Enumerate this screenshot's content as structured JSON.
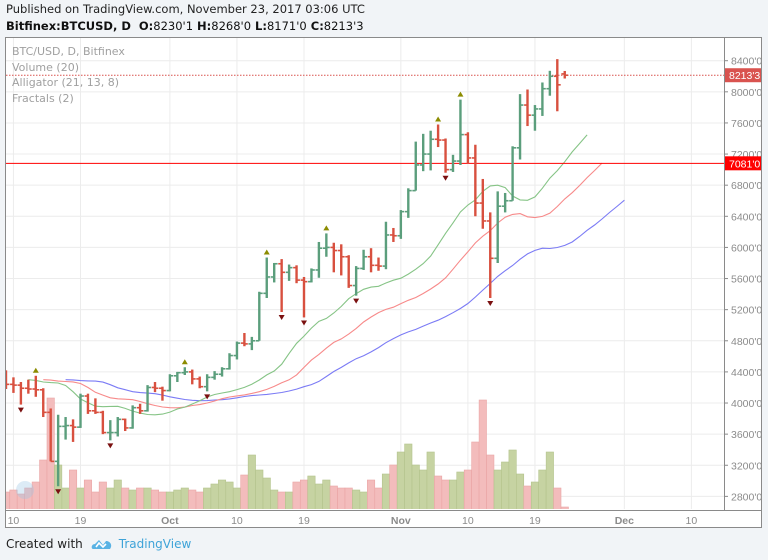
{
  "header": {
    "published": "Published on TradingView.com, November 23, 2017 03:06 UTC",
    "symbol": "Bitfinex:BTCUSD, D",
    "ohlc": {
      "o_label": "O:",
      "o": "8230'1",
      "h_label": "H:",
      "h": "8268'0",
      "l_label": "L:",
      "l": "8171'0",
      "c_label": "C:",
      "c": "8213'3"
    }
  },
  "legend": {
    "series": "BTC/USD, D, Bitfinex",
    "volume": "Volume (20)",
    "alligator": "Alligator (21, 13, 8)",
    "fractals": "Fractals (2)"
  },
  "footer": {
    "created_with": "Created with",
    "brand": "TradingView"
  },
  "colors": {
    "up": "#5b9e7c",
    "down": "#d8503f",
    "vol_up": "#c6d3a2",
    "vol_down": "#f3bcbc",
    "jaw": "#7b7bf5",
    "teeth": "#f78a8a",
    "lips": "#86c486",
    "fractal_up": "#8c8c00",
    "fractal_down": "#7a1010",
    "last_price": "#d9534f",
    "hline": "#ff0000"
  },
  "chart_data": {
    "type": "ohlc",
    "symbol": "BTC/USD",
    "interval": "D",
    "start_date": "2017-09-09",
    "ylim": [
      2700,
      8550
    ],
    "y_ticks": [
      "8400'0",
      "8000'0",
      "7600'0",
      "7200'0",
      "6800'0",
      "6400'0",
      "6000'0",
      "5600'0",
      "5200'0",
      "4800'0",
      "4400'0",
      "4000'0",
      "3600'0",
      "3200'0",
      "2800'0"
    ],
    "y_tick_values": [
      8400,
      8000,
      7600,
      7200,
      6800,
      6400,
      6000,
      5600,
      5200,
      4800,
      4400,
      4000,
      3600,
      3200,
      2800
    ],
    "x_ticks": [
      {
        "label": "10",
        "day": 1,
        "bold": false
      },
      {
        "label": "19",
        "day": 10,
        "bold": false
      },
      {
        "label": "Oct",
        "day": 22,
        "bold": true
      },
      {
        "label": "10",
        "day": 31,
        "bold": false
      },
      {
        "label": "19",
        "day": 40,
        "bold": false
      },
      {
        "label": "Nov",
        "day": 53,
        "bold": true
      },
      {
        "label": "10",
        "day": 62,
        "bold": false
      },
      {
        "label": "19",
        "day": 71,
        "bold": false
      },
      {
        "label": "Dec",
        "day": 83,
        "bold": true
      },
      {
        "label": "10",
        "day": 92,
        "bold": false
      }
    ],
    "last_price": {
      "value": 8213.3,
      "label": "8213'3"
    },
    "horizontal_line": {
      "value": 7081.0,
      "label": "7081'0"
    },
    "alligator": {
      "jaw": {
        "length": 21,
        "offset": 8
      },
      "teeth": {
        "length": 13,
        "offset": 5
      },
      "lips": {
        "length": 8,
        "offset": 3
      }
    },
    "fractal_period": 2,
    "ohlc": [
      [
        4320,
        4420,
        4180,
        4240
      ],
      [
        4240,
        4330,
        4130,
        4230
      ],
      [
        4230,
        4270,
        3980,
        4190
      ],
      [
        4190,
        4300,
        4120,
        4180
      ],
      [
        4180,
        4350,
        4080,
        4170
      ],
      [
        4170,
        4190,
        3820,
        3880
      ],
      [
        3880,
        3930,
        3250,
        3250
      ],
      [
        3250,
        3850,
        2930,
        3700
      ],
      [
        3700,
        3820,
        3530,
        3710
      ],
      [
        3710,
        3790,
        3500,
        3690
      ],
      [
        3690,
        4120,
        3680,
        4090
      ],
      [
        4090,
        4120,
        3860,
        3900
      ],
      [
        3900,
        4060,
        3860,
        3880
      ],
      [
        3880,
        3900,
        3600,
        3620
      ],
      [
        3620,
        3780,
        3520,
        3620
      ],
      [
        3620,
        3820,
        3570,
        3790
      ],
      [
        3790,
        3800,
        3640,
        3680
      ],
      [
        3680,
        3970,
        3670,
        3940
      ],
      [
        3940,
        3990,
        3860,
        3900
      ],
      [
        3900,
        4230,
        3890,
        4200
      ],
      [
        4200,
        4270,
        4140,
        4190
      ],
      [
        4190,
        4210,
        4030,
        4160
      ],
      [
        4160,
        4370,
        4150,
        4350
      ],
      [
        4350,
        4400,
        4270,
        4390
      ],
      [
        4390,
        4460,
        4360,
        4400
      ],
      [
        4400,
        4430,
        4240,
        4310
      ],
      [
        4310,
        4340,
        4190,
        4210
      ],
      [
        4210,
        4370,
        4150,
        4330
      ],
      [
        4330,
        4410,
        4300,
        4370
      ],
      [
        4370,
        4460,
        4340,
        4440
      ],
      [
        4440,
        4640,
        4430,
        4610
      ],
      [
        4610,
        4790,
        4560,
        4770
      ],
      [
        4770,
        4900,
        4730,
        4760
      ],
      [
        4760,
        4850,
        4680,
        4800
      ],
      [
        4800,
        5430,
        4800,
        5410
      ],
      [
        5410,
        5870,
        5350,
        5620
      ],
      [
        5620,
        5800,
        5550,
        5790
      ],
      [
        5790,
        5850,
        5170,
        5680
      ],
      [
        5680,
        5780,
        5570,
        5740
      ],
      [
        5740,
        5770,
        5540,
        5580
      ],
      [
        5580,
        5620,
        5100,
        5560
      ],
      [
        5560,
        5730,
        5550,
        5710
      ],
      [
        5710,
        6070,
        5610,
        5990
      ],
      [
        5990,
        6180,
        5880,
        6000
      ],
      [
        6000,
        6060,
        5680,
        5960
      ],
      [
        5960,
        6040,
        5640,
        5880
      ],
      [
        5880,
        5900,
        5480,
        5510
      ],
      [
        5510,
        5760,
        5380,
        5730
      ],
      [
        5730,
        5970,
        5710,
        5880
      ],
      [
        5880,
        5990,
        5680,
        5770
      ],
      [
        5770,
        5870,
        5700,
        5760
      ],
      [
        5760,
        6330,
        5720,
        6160
      ],
      [
        6160,
        6250,
        6070,
        6150
      ],
      [
        6150,
        6480,
        6110,
        6460
      ],
      [
        6460,
        6760,
        6380,
        6730
      ],
      [
        6730,
        7360,
        6730,
        7060
      ],
      [
        7060,
        7460,
        6980,
        7200
      ],
      [
        7200,
        7500,
        6990,
        7390
      ],
      [
        7390,
        7580,
        7290,
        7380
      ],
      [
        7380,
        7400,
        6960,
        7000
      ],
      [
        7000,
        7190,
        6970,
        7110
      ],
      [
        7110,
        7900,
        7060,
        7450
      ],
      [
        7450,
        7480,
        7080,
        7150
      ],
      [
        7150,
        7320,
        6400,
        6570
      ],
      [
        6570,
        6880,
        6240,
        6340
      ],
      [
        6340,
        6450,
        5350,
        5860
      ],
      [
        5860,
        6720,
        5800,
        6530
      ],
      [
        6530,
        6700,
        6450,
        6600
      ],
      [
        6600,
        7300,
        6600,
        7280
      ],
      [
        7280,
        7970,
        7130,
        7830
      ],
      [
        7830,
        8030,
        7560,
        7700
      ],
      [
        7700,
        7830,
        7500,
        7780
      ],
      [
        7780,
        8120,
        7690,
        8040
      ],
      [
        8040,
        8270,
        7950,
        8200
      ],
      [
        8200,
        8420,
        7750,
        8090
      ],
      [
        8230.1,
        8268,
        8171,
        8213.3
      ]
    ],
    "volume": [
      18,
      20,
      16,
      22,
      28,
      50,
      112,
      45,
      22,
      40,
      22,
      30,
      18,
      28,
      22,
      30,
      22,
      20,
      22,
      22,
      20,
      18,
      18,
      20,
      22,
      20,
      18,
      22,
      26,
      30,
      28,
      22,
      35,
      55,
      40,
      32,
      20,
      18,
      18,
      28,
      30,
      34,
      26,
      30,
      24,
      22,
      22,
      20,
      18,
      30,
      22,
      36,
      45,
      58,
      66,
      45,
      40,
      58,
      34,
      30,
      30,
      38,
      40,
      68,
      110,
      55,
      40,
      48,
      60,
      36,
      24,
      28,
      40,
      58,
      22,
      3
    ]
  }
}
